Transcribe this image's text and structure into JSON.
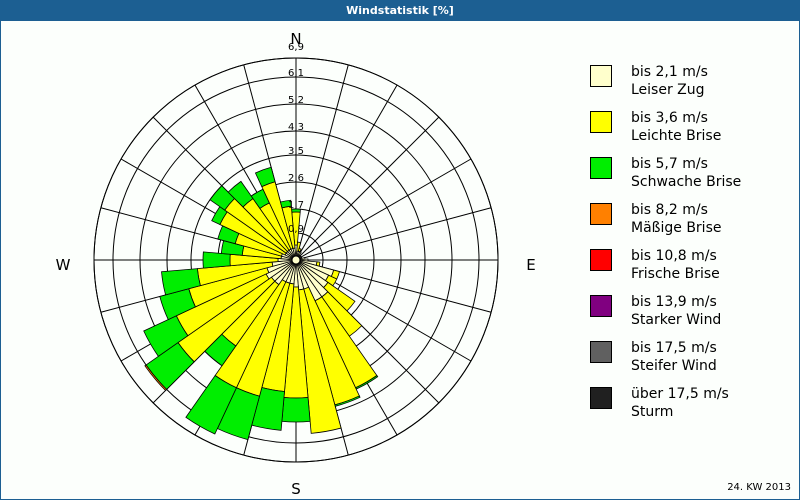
{
  "window": {
    "title": "Windstatistik [%]"
  },
  "footer": {
    "label": "24. KW 2013"
  },
  "compass": {
    "n": "N",
    "e": "E",
    "s": "S",
    "w": "W"
  },
  "ring_labels": [
    "0,9",
    "1,7",
    "2,6",
    "3,5",
    "4,3",
    "5,2",
    "6,1",
    "6,9"
  ],
  "legend": [
    {
      "range": "bis 2,1 m/s",
      "name": "Leiser Zug",
      "color": "#ffffcc"
    },
    {
      "range": "bis 3,6 m/s",
      "name": "Leichte Brise",
      "color": "#ffff00"
    },
    {
      "range": "bis 5,7 m/s",
      "name": "Schwache Brise",
      "color": "#00ee00"
    },
    {
      "range": "bis 8,2 m/s",
      "name": "Mäßige Brise",
      "color": "#ff8000"
    },
    {
      "range": "bis 10,8 m/s",
      "name": "Frische Brise",
      "color": "#ff0000"
    },
    {
      "range": "bis 13,9 m/s",
      "name": "Starker Wind",
      "color": "#800080"
    },
    {
      "range": "bis 17,5 m/s",
      "name": "Steifer Wind",
      "color": "#606060"
    },
    {
      "range": "über 17,5 m/s",
      "name": "Sturm",
      "color": "#202020"
    }
  ],
  "chart_data": {
    "type": "wind_rose",
    "title": "Windstatistik [%]",
    "subtitle": "24. KW 2013",
    "unit": "%",
    "radial_ticks": [
      0.9,
      1.7,
      2.6,
      3.5,
      4.3,
      5.2,
      6.1,
      6.9
    ],
    "rmax": 6.9,
    "sector_width_deg": 10,
    "series_names": [
      "bis 2,1 m/s",
      "bis 3,6 m/s",
      "bis 5,7 m/s",
      "bis 8,2 m/s"
    ],
    "sectors": [
      {
        "dir": 0,
        "values": [
          0.5,
          1.1,
          0.1,
          0
        ]
      },
      {
        "dir": 10,
        "values": [
          0.3,
          0.3,
          0,
          0
        ]
      },
      {
        "dir": 20,
        "values": [
          0.3,
          0.1,
          0,
          0
        ]
      },
      {
        "dir": 30,
        "values": [
          0.3,
          0.0,
          0,
          0
        ]
      },
      {
        "dir": 40,
        "values": [
          0.2,
          0,
          0,
          0
        ]
      },
      {
        "dir": 50,
        "values": [
          0.2,
          0,
          0,
          0
        ]
      },
      {
        "dir": 60,
        "values": [
          0.2,
          0,
          0,
          0
        ]
      },
      {
        "dir": 70,
        "values": [
          0.2,
          0,
          0,
          0
        ]
      },
      {
        "dir": 80,
        "values": [
          0.3,
          0,
          0,
          0
        ]
      },
      {
        "dir": 90,
        "values": [
          0.4,
          0,
          0,
          0
        ]
      },
      {
        "dir": 100,
        "values": [
          0.7,
          0.1,
          0,
          0
        ]
      },
      {
        "dir": 110,
        "values": [
          1.3,
          0.2,
          0,
          0
        ]
      },
      {
        "dir": 120,
        "values": [
          1.2,
          0.3,
          0,
          0
        ]
      },
      {
        "dir": 130,
        "values": [
          1.3,
          1.1,
          0.0,
          0
        ]
      },
      {
        "dir": 140,
        "values": [
          1.5,
          1.6,
          0,
          0
        ]
      },
      {
        "dir": 150,
        "values": [
          1.5,
          3.2,
          0.05,
          0
        ]
      },
      {
        "dir": 160,
        "values": [
          1.0,
          4.0,
          0.05,
          0
        ]
      },
      {
        "dir": 170,
        "values": [
          1.0,
          4.8,
          0,
          0
        ]
      },
      {
        "dir": 180,
        "values": [
          0.9,
          3.7,
          0.8,
          0
        ]
      },
      {
        "dir": 190,
        "values": [
          0.8,
          3.6,
          1.3,
          0
        ]
      },
      {
        "dir": 200,
        "values": [
          0.8,
          3.9,
          1.5,
          0
        ]
      },
      {
        "dir": 210,
        "values": [
          0.8,
          3.9,
          1.7,
          0
        ]
      },
      {
        "dir": 220,
        "values": [
          1.0,
          2.5,
          0.8,
          0
        ]
      },
      {
        "dir": 230,
        "values": [
          1.0,
          3.8,
          1.3,
          0.05
        ]
      },
      {
        "dir": 240,
        "values": [
          1.1,
          3.3,
          1.2,
          0
        ]
      },
      {
        "dir": 250,
        "values": [
          1.0,
          2.7,
          1.0,
          0
        ]
      },
      {
        "dir": 260,
        "values": [
          0.8,
          2.5,
          1.2,
          0
        ]
      },
      {
        "dir": 270,
        "values": [
          0.6,
          1.6,
          0.9,
          0
        ]
      },
      {
        "dir": 280,
        "values": [
          0.5,
          1.3,
          0.7,
          0
        ]
      },
      {
        "dir": 290,
        "values": [
          0.5,
          1.6,
          0.6,
          0
        ]
      },
      {
        "dir": 300,
        "values": [
          0.4,
          2.4,
          0.3,
          0
        ]
      },
      {
        "dir": 310,
        "values": [
          0.4,
          2.5,
          0.6,
          0
        ]
      },
      {
        "dir": 320,
        "values": [
          0.4,
          2.1,
          0.7,
          0
        ]
      },
      {
        "dir": 330,
        "values": [
          0.4,
          1.7,
          0.5,
          0
        ]
      },
      {
        "dir": 340,
        "values": [
          0.4,
          2.3,
          0.5,
          0
        ]
      },
      {
        "dir": 350,
        "values": [
          0.4,
          1.4,
          0.2,
          0
        ]
      }
    ]
  }
}
